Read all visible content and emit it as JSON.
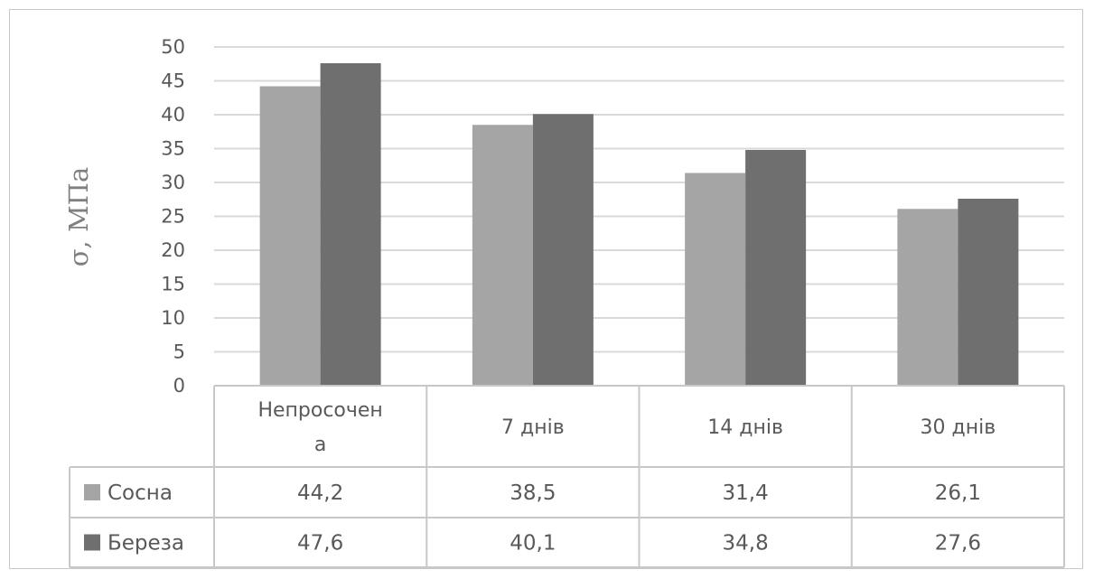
{
  "chart_data": {
    "type": "bar",
    "ylabel": "σ, МПа",
    "ylim": [
      0,
      50
    ],
    "yticks": [
      0,
      5,
      10,
      15,
      20,
      25,
      30,
      35,
      40,
      45,
      50
    ],
    "grid": true,
    "legend": "data-table",
    "categories": [
      [
        "Непросочен",
        "а"
      ],
      [
        "7 днів"
      ],
      [
        "14 днів"
      ],
      [
        "30 днів"
      ]
    ],
    "series": [
      {
        "name": "Сосна",
        "color": "#a5a5a5",
        "values": [
          44.2,
          38.5,
          31.4,
          26.1
        ],
        "labels": [
          "44,2",
          "38,5",
          "31,4",
          "26,1"
        ]
      },
      {
        "name": "Береза",
        "color": "#6f6f6f",
        "values": [
          47.6,
          40.1,
          34.8,
          27.6
        ],
        "labels": [
          "47,6",
          "40,1",
          "34,8",
          "27,6"
        ]
      }
    ]
  }
}
